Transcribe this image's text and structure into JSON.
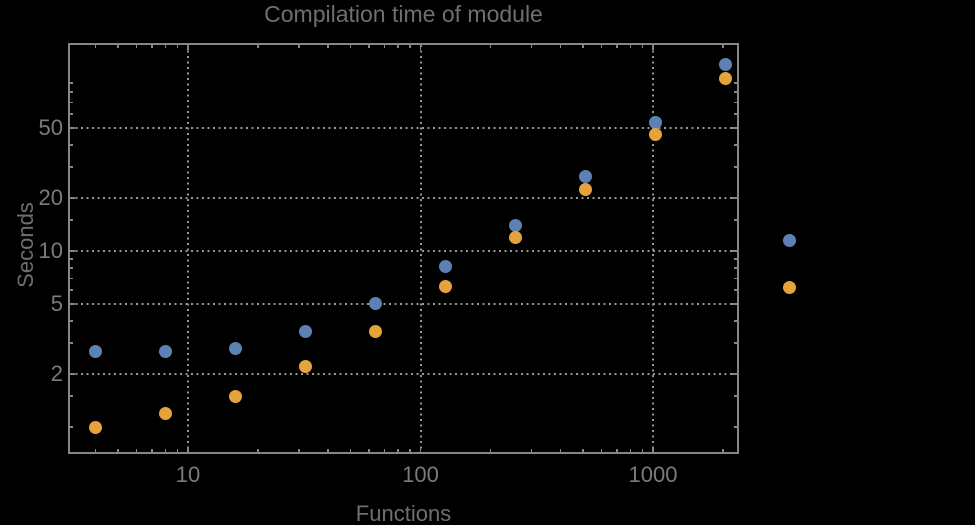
{
  "title": "Compilation time of module",
  "colors": {
    "background": "#000000",
    "frame": "#868686",
    "grid": "#969696",
    "title_text": "#6f6f6f",
    "axis_label_text": "#6f6f6f",
    "tick_label_text": "#7b7b7b",
    "series1": "#5e81b5",
    "series2": "#e7a33b"
  },
  "chart_data": {
    "type": "scatter",
    "title": "Compilation time of module",
    "xlabel": "Functions",
    "ylabel": "Seconds",
    "xscale": "log",
    "yscale": "log",
    "xlim": [
      3.05,
      2340
    ],
    "ylim": [
      0.7,
      152
    ],
    "grid": "major, dotted, both axes",
    "x": [
      4,
      8,
      16,
      32,
      64,
      128,
      256,
      512,
      1024,
      2048
    ],
    "series": [
      {
        "name": "series-1-blue",
        "color": "#5e81b5",
        "values": [
          2.7,
          2.7,
          2.8,
          3.5,
          5.0,
          8.2,
          14.0,
          26.4,
          54,
          115
        ]
      },
      {
        "name": "series-2-orange",
        "color": "#e7a33b",
        "values": [
          1.0,
          1.2,
          1.5,
          2.2,
          3.5,
          6.3,
          11.9,
          22.4,
          46,
          95
        ]
      }
    ],
    "x_ticks": [
      10,
      100,
      1000
    ],
    "x_tick_labels": [
      "10",
      "100",
      "1000"
    ],
    "x_minor_ticks": [
      4,
      5,
      6,
      7,
      8,
      9,
      20,
      30,
      40,
      50,
      60,
      70,
      80,
      90,
      200,
      300,
      400,
      500,
      600,
      700,
      800,
      900,
      2000
    ],
    "y_ticks": [
      2,
      5,
      10,
      20,
      50
    ],
    "y_tick_labels": [
      "2",
      "5",
      "10",
      "20",
      "50"
    ],
    "y_minor_ticks": [
      1,
      1.5,
      3,
      4,
      6,
      7,
      8,
      9,
      15,
      30,
      40,
      60,
      70,
      80,
      90,
      150
    ],
    "legend": {
      "position": "outside-right",
      "entries": [
        {
          "series": "series-1-blue",
          "label": ""
        },
        {
          "series": "series-2-orange",
          "label": ""
        }
      ]
    }
  }
}
